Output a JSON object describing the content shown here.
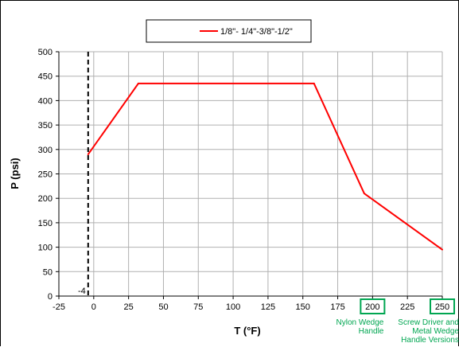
{
  "chart_data": {
    "type": "line",
    "title": "",
    "xlabel": "T (°F)",
    "ylabel": "P (psi)",
    "xlim": [
      -25,
      250
    ],
    "ylim": [
      0,
      500
    ],
    "x_ticks": [
      -25,
      0,
      25,
      50,
      75,
      100,
      125,
      150,
      175,
      200,
      225,
      250
    ],
    "y_ticks": [
      0,
      50,
      100,
      150,
      200,
      250,
      300,
      350,
      400,
      450,
      500
    ],
    "grid": true,
    "legend_position": "top-center",
    "series": [
      {
        "name": "1/8\"- 1/4\"-3/8\"-1/2\"",
        "color": "#ff0000",
        "x": [
          -4,
          32,
          158,
          194,
          250
        ],
        "y": [
          290,
          435,
          435,
          210,
          95
        ]
      }
    ],
    "reference_line": {
      "x": -4,
      "label": "-4",
      "color": "#000000",
      "style": "dashed"
    },
    "highlighted_ticks": [
      {
        "x": 200,
        "label": "200",
        "note": [
          "Nylon Wedge",
          "Handle"
        ]
      },
      {
        "x": 250,
        "label": "250",
        "note": [
          "Screw Driver and",
          "Metal Wedge",
          "Handle Versions"
        ]
      }
    ],
    "highlight_color": "#00a651"
  }
}
